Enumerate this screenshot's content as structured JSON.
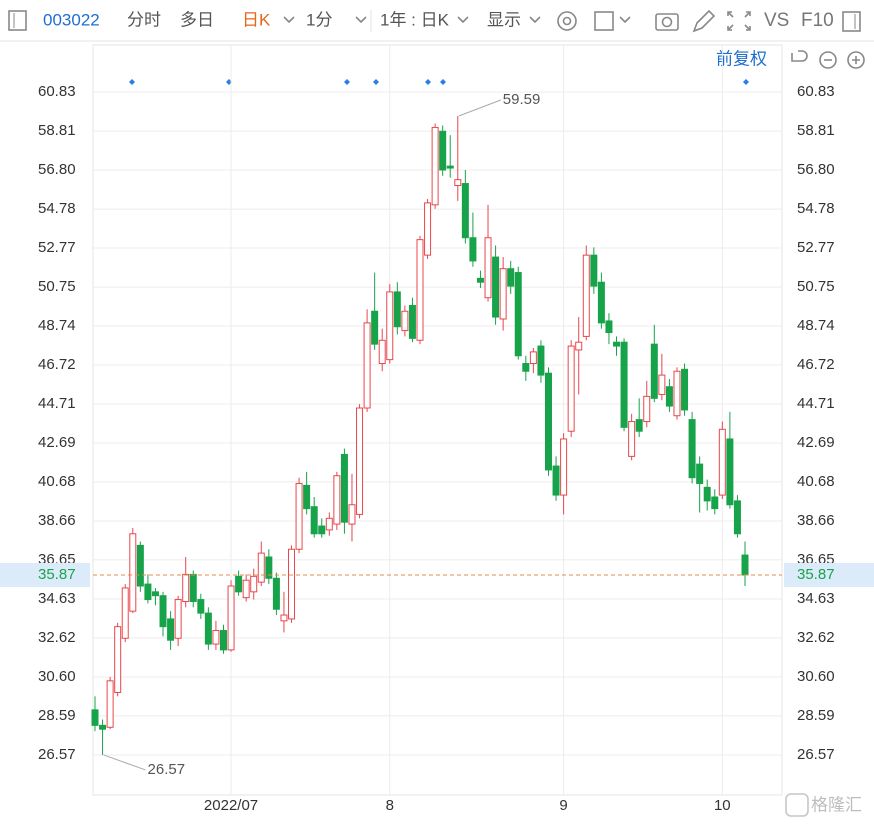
{
  "toolbar": {
    "code": "003022",
    "tabs": [
      "分时",
      "多日",
      "日K",
      "1分",
      "1年 : 日K",
      "显示"
    ],
    "compare": "VS",
    "f10": "F10",
    "adjust": "前复权"
  },
  "watermark": "格隆汇",
  "chart_data": {
    "type": "candlestick",
    "categories": [
      null,
      null,
      null,
      null,
      null,
      null,
      null,
      null,
      null,
      null,
      null,
      null,
      null,
      null,
      null,
      null,
      null,
      null,
      "2022/07",
      null,
      null,
      null,
      null,
      null,
      null,
      null,
      null,
      null,
      null,
      null,
      null,
      null,
      null,
      null,
      null,
      null,
      null,
      null,
      null,
      "8",
      null,
      null,
      null,
      null,
      null,
      null,
      null,
      null,
      null,
      null,
      null,
      null,
      null,
      null,
      null,
      null,
      null,
      null,
      null,
      null,
      null,
      null,
      "9",
      null,
      null,
      null,
      null,
      null,
      null,
      null,
      null,
      null,
      null,
      null,
      null,
      null,
      null,
      null,
      null,
      null,
      null,
      null,
      null,
      "10",
      null,
      null,
      null
    ],
    "ohlc": [
      [
        28.9,
        29.6,
        27.8,
        28.1
      ],
      [
        28.1,
        28.4,
        26.57,
        27.9
      ],
      [
        28.0,
        30.6,
        27.9,
        30.4
      ],
      [
        29.8,
        33.4,
        29.6,
        33.2
      ],
      [
        32.6,
        35.4,
        32.4,
        35.2
      ],
      [
        34.0,
        38.3,
        33.9,
        38.0
      ],
      [
        37.4,
        37.6,
        35.0,
        35.3
      ],
      [
        35.4,
        35.9,
        34.4,
        34.6
      ],
      [
        35.0,
        35.2,
        34.3,
        34.8
      ],
      [
        34.8,
        35.0,
        32.7,
        33.2
      ],
      [
        33.6,
        34.0,
        32.0,
        32.5
      ],
      [
        32.6,
        34.8,
        32.2,
        34.6
      ],
      [
        34.5,
        36.8,
        34.2,
        35.9
      ],
      [
        35.9,
        36.1,
        34.2,
        34.5
      ],
      [
        34.6,
        34.9,
        33.6,
        33.9
      ],
      [
        33.9,
        34.2,
        32.0,
        32.3
      ],
      [
        32.3,
        33.5,
        32.0,
        33.0
      ],
      [
        33.0,
        33.3,
        31.8,
        32.0
      ],
      [
        32.0,
        35.6,
        31.9,
        35.3
      ],
      [
        35.8,
        36.1,
        34.8,
        35.0
      ],
      [
        34.7,
        35.9,
        34.5,
        35.6
      ],
      [
        35.0,
        36.2,
        34.6,
        35.8
      ],
      [
        35.5,
        37.6,
        35.3,
        37.0
      ],
      [
        36.8,
        37.2,
        35.4,
        35.7
      ],
      [
        35.7,
        36.0,
        33.8,
        34.1
      ],
      [
        33.5,
        35.0,
        32.9,
        33.8
      ],
      [
        33.6,
        37.4,
        33.4,
        37.2
      ],
      [
        37.2,
        40.9,
        37.0,
        40.6
      ],
      [
        40.5,
        41.2,
        39.0,
        39.3
      ],
      [
        39.4,
        39.9,
        37.8,
        38.0
      ],
      [
        38.4,
        38.8,
        37.8,
        38.0
      ],
      [
        38.2,
        39.1,
        37.9,
        38.8
      ],
      [
        38.5,
        41.2,
        38.2,
        41.0
      ],
      [
        42.1,
        42.4,
        38.0,
        38.6
      ],
      [
        38.5,
        41.1,
        37.6,
        39.5
      ],
      [
        39.0,
        44.7,
        38.8,
        44.5
      ],
      [
        44.5,
        49.6,
        44.3,
        48.9
      ],
      [
        49.5,
        51.5,
        47.5,
        47.8
      ],
      [
        46.8,
        48.6,
        46.4,
        48.0
      ],
      [
        47.0,
        50.9,
        46.8,
        50.5
      ],
      [
        50.5,
        51.0,
        48.3,
        48.7
      ],
      [
        48.5,
        49.8,
        48.2,
        49.5
      ],
      [
        49.8,
        50.2,
        47.9,
        48.1
      ],
      [
        48.0,
        53.4,
        47.8,
        53.2
      ],
      [
        52.4,
        55.3,
        52.2,
        55.1
      ],
      [
        55.0,
        59.2,
        54.8,
        59.0
      ],
      [
        58.8,
        59.1,
        56.5,
        56.8
      ],
      [
        57.0,
        58.6,
        56.4,
        56.9
      ],
      [
        56.0,
        59.59,
        55.2,
        56.3
      ],
      [
        56.1,
        56.8,
        53.0,
        53.3
      ],
      [
        53.3,
        54.6,
        51.8,
        52.1
      ],
      [
        51.2,
        51.6,
        50.7,
        51.0
      ],
      [
        50.2,
        55.0,
        50.0,
        53.3
      ],
      [
        52.3,
        52.9,
        48.8,
        49.2
      ],
      [
        49.1,
        52.3,
        48.5,
        51.7
      ],
      [
        51.7,
        52.1,
        50.4,
        50.8
      ],
      [
        51.5,
        51.8,
        47.0,
        47.2
      ],
      [
        46.8,
        47.2,
        45.9,
        46.4
      ],
      [
        46.8,
        47.6,
        46.3,
        47.4
      ],
      [
        47.7,
        48.0,
        45.8,
        46.2
      ],
      [
        46.3,
        46.6,
        41.0,
        41.3
      ],
      [
        41.5,
        42.0,
        39.7,
        40.0
      ],
      [
        40.0,
        43.2,
        39.0,
        42.9
      ],
      [
        43.3,
        48.0,
        43.0,
        47.7
      ],
      [
        47.5,
        49.2,
        45.2,
        47.9
      ],
      [
        48.2,
        52.9,
        48.0,
        52.4
      ],
      [
        52.4,
        52.8,
        50.4,
        50.8
      ],
      [
        51.0,
        51.5,
        48.6,
        48.9
      ],
      [
        49.0,
        49.4,
        47.8,
        48.4
      ],
      [
        47.9,
        48.2,
        47.2,
        47.7
      ],
      [
        47.9,
        48.1,
        43.3,
        43.5
      ],
      [
        42.0,
        44.2,
        41.8,
        43.8
      ],
      [
        43.9,
        45.0,
        43.0,
        43.3
      ],
      [
        43.8,
        45.9,
        43.5,
        45.1
      ],
      [
        47.8,
        48.8,
        44.8,
        45.0
      ],
      [
        45.2,
        47.3,
        44.9,
        46.2
      ],
      [
        45.6,
        46.0,
        44.3,
        44.6
      ],
      [
        44.1,
        46.6,
        43.9,
        46.4
      ],
      [
        46.5,
        46.8,
        44.1,
        44.4
      ],
      [
        43.9,
        44.3,
        40.6,
        40.9
      ],
      [
        41.6,
        42.0,
        39.1,
        40.6
      ],
      [
        40.4,
        40.8,
        39.2,
        39.7
      ],
      [
        39.9,
        40.3,
        39.0,
        39.3
      ],
      [
        40.0,
        43.8,
        39.8,
        43.4
      ],
      [
        42.9,
        44.3,
        39.3,
        39.5
      ],
      [
        39.7,
        40.0,
        37.8,
        38.0
      ],
      [
        36.9,
        37.6,
        35.3,
        35.87
      ]
    ],
    "up_color": "#e8474c",
    "down_color": "#17a34a",
    "annotations": [
      59.59,
      26.57
    ],
    "ylim": [
      24.5,
      63.26
    ],
    "yticks": [
      26.57,
      28.59,
      {
        "value": 30.6,
        "label": "30.60"
      },
      32.62,
      34.63,
      36.65,
      38.66,
      40.68,
      42.69,
      44.71,
      46.72,
      48.74,
      50.75,
      52.77,
      54.78,
      {
        "value": 56.8,
        "label": "56.80"
      },
      58.81,
      60.83
    ],
    "grid": true
  }
}
